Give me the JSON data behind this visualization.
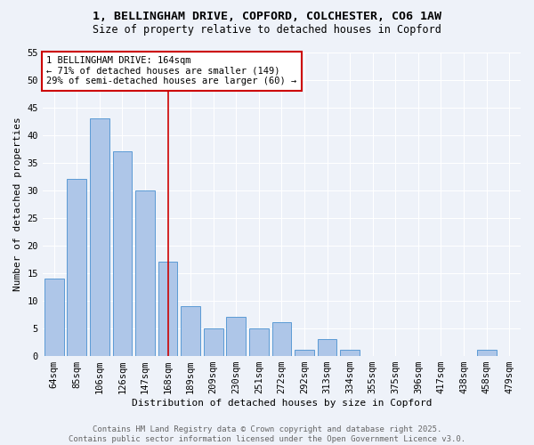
{
  "title1": "1, BELLINGHAM DRIVE, COPFORD, COLCHESTER, CO6 1AW",
  "title2": "Size of property relative to detached houses in Copford",
  "xlabel": "Distribution of detached houses by size in Copford",
  "ylabel": "Number of detached properties",
  "categories": [
    "64sqm",
    "85sqm",
    "106sqm",
    "126sqm",
    "147sqm",
    "168sqm",
    "189sqm",
    "209sqm",
    "230sqm",
    "251sqm",
    "272sqm",
    "292sqm",
    "313sqm",
    "334sqm",
    "355sqm",
    "375sqm",
    "396sqm",
    "417sqm",
    "438sqm",
    "458sqm",
    "479sqm"
  ],
  "values": [
    14,
    32,
    43,
    37,
    30,
    17,
    9,
    5,
    7,
    5,
    6,
    1,
    3,
    1,
    0,
    0,
    0,
    0,
    0,
    1,
    0
  ],
  "bar_color": "#aec6e8",
  "bar_edge_color": "#5b9bd5",
  "reference_line_x": 5,
  "annotation_text": "1 BELLINGHAM DRIVE: 164sqm\n← 71% of detached houses are smaller (149)\n29% of semi-detached houses are larger (60) →",
  "annotation_box_color": "#ffffff",
  "annotation_box_edge_color": "#cc0000",
  "ref_line_color": "#cc0000",
  "ylim": [
    0,
    55
  ],
  "yticks": [
    0,
    5,
    10,
    15,
    20,
    25,
    30,
    35,
    40,
    45,
    50,
    55
  ],
  "footer_text": "Contains HM Land Registry data © Crown copyright and database right 2025.\nContains public sector information licensed under the Open Government Licence v3.0.",
  "background_color": "#eef2f9",
  "grid_color": "#ffffff",
  "title_fontsize": 9.5,
  "subtitle_fontsize": 8.5,
  "axis_label_fontsize": 8,
  "tick_fontsize": 7.5,
  "annotation_fontsize": 7.5,
  "footer_fontsize": 6.5
}
